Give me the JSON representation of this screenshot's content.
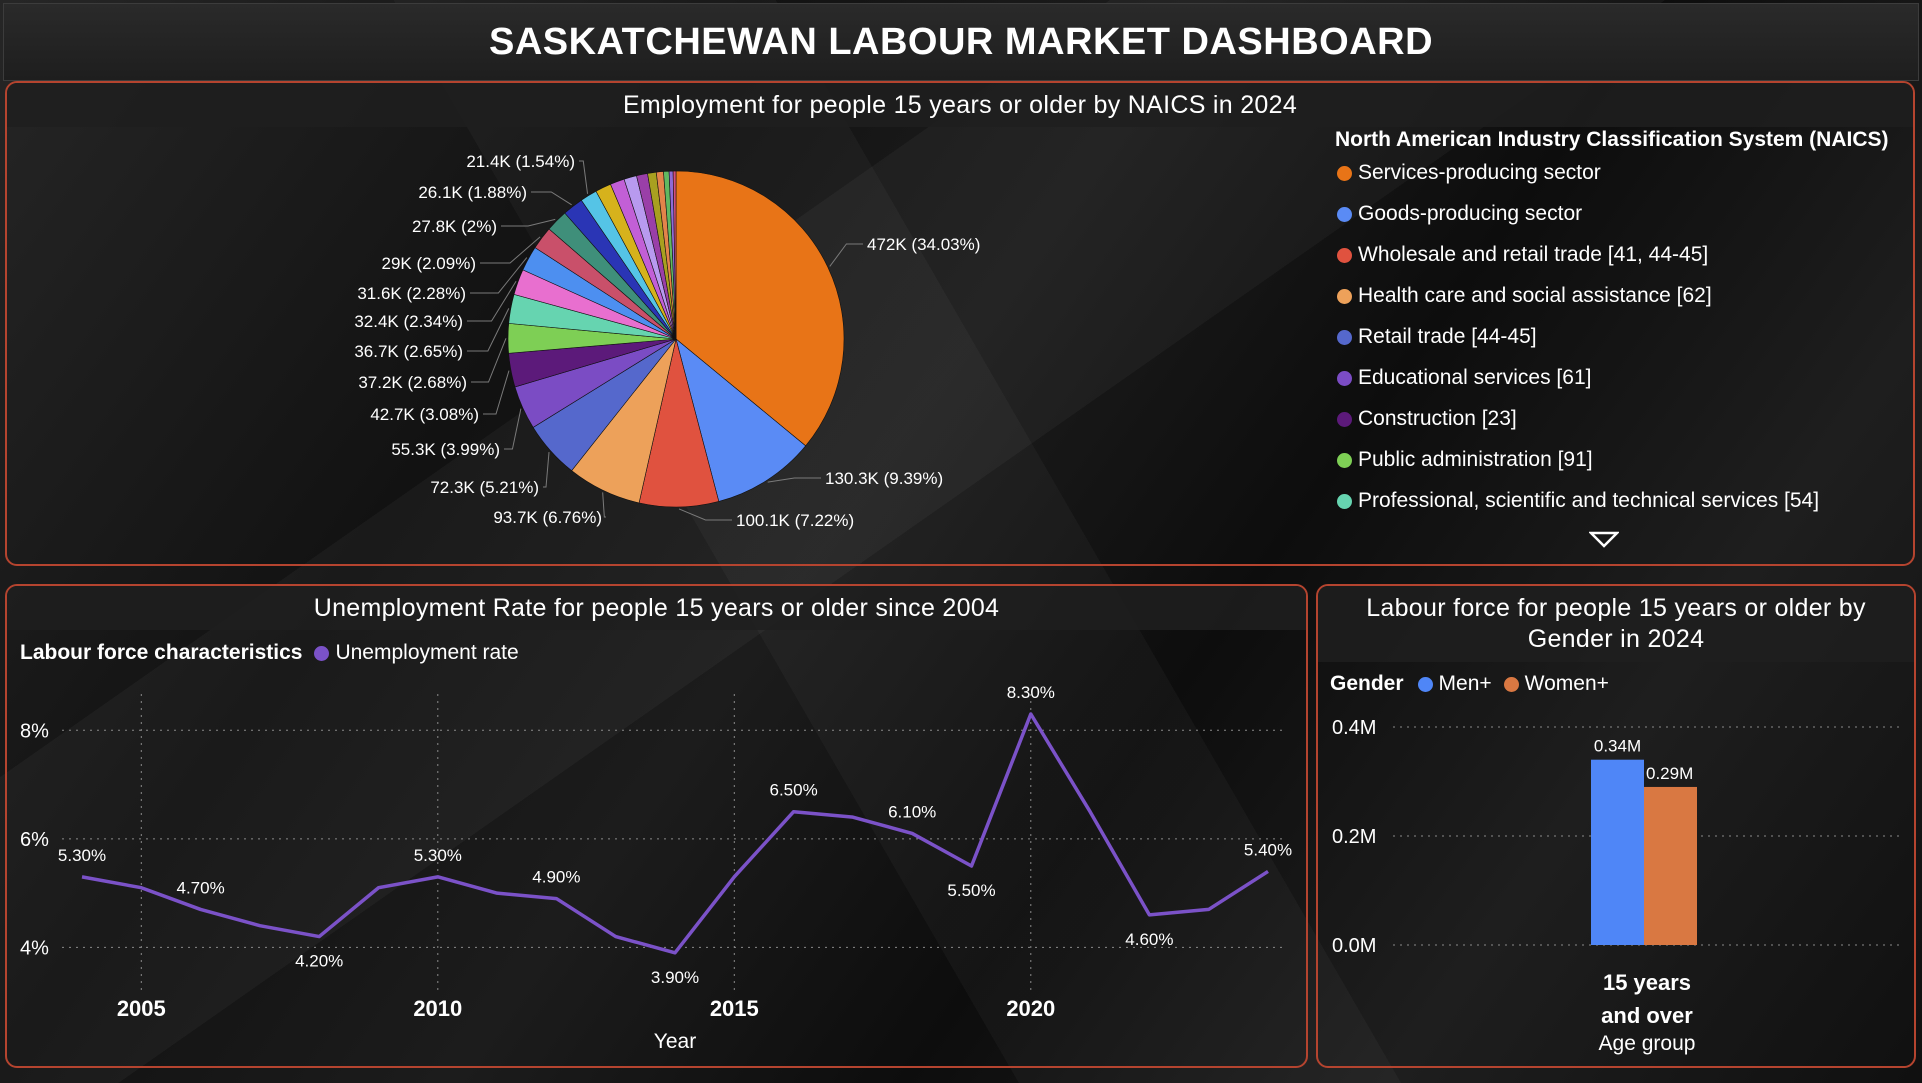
{
  "dashboard_title": "SASKATCHEWAN LABOUR MARKET DASHBOARD",
  "colors": {
    "panel_border": "#b5442f",
    "unemployment_line": "#7b52c8",
    "men": "#4f86f7",
    "women": "#d97842"
  },
  "chart_data": [
    {
      "type": "pie",
      "title": "Employment for people 15 years or older by NAICS in 2024",
      "legend_title": "North American Industry Classification System (NAICS)",
      "legend_position": "right",
      "legend_items": [
        {
          "label": "Services-producing sector",
          "color": "#e87417"
        },
        {
          "label": "Goods-producing sector",
          "color": "#5a8bf5"
        },
        {
          "label": "Wholesale and retail trade [41, 44-45]",
          "color": "#e0523f"
        },
        {
          "label": "Health care and social assistance [62]",
          "color": "#eda15a"
        },
        {
          "label": "Retail trade [44-45]",
          "color": "#5568cc"
        },
        {
          "label": "Educational services [61]",
          "color": "#7b4cc4"
        },
        {
          "label": "Construction [23]",
          "color": "#5c1a7a"
        },
        {
          "label": "Public administration [91]",
          "color": "#7ecf55"
        },
        {
          "label": "Professional, scientific and technical services [54]",
          "color": "#66d4b0"
        }
      ],
      "slices": [
        {
          "value": 472.0,
          "label": "472K (34.03%)",
          "color": "#e87417"
        },
        {
          "value": 130.3,
          "label": "130.3K (9.39%)",
          "color": "#5a8bf5"
        },
        {
          "value": 100.1,
          "label": "100.1K (7.22%)",
          "color": "#e0523f"
        },
        {
          "value": 93.7,
          "label": "93.7K (6.76%)",
          "color": "#eda15a"
        },
        {
          "value": 72.3,
          "label": "72.3K (5.21%)",
          "color": "#5568cc"
        },
        {
          "value": 55.3,
          "label": "55.3K (3.99%)",
          "color": "#7b4cc4"
        },
        {
          "value": 42.7,
          "label": "42.7K (3.08%)",
          "color": "#5c1a7a"
        },
        {
          "value": 37.2,
          "label": "37.2K (2.68%)",
          "color": "#7ecf55"
        },
        {
          "value": 36.7,
          "label": "36.7K (2.65%)",
          "color": "#66d4b0"
        },
        {
          "value": 32.4,
          "label": "32.4K (2.34%)",
          "color": "#e86fcf"
        },
        {
          "value": 31.6,
          "label": "31.6K (2.28%)",
          "color": "#4d8ff0"
        },
        {
          "value": 29.0,
          "label": "29K (2.09%)",
          "color": "#c9506a"
        },
        {
          "value": 27.8,
          "label": "27.8K (2%)",
          "color": "#3f8f7a"
        },
        {
          "value": 26.1,
          "label": "26.1K (1.88%)",
          "color": "#2a35b5"
        },
        {
          "value": 21.4,
          "label": "21.4K (1.54%)",
          "color": "#55c4e6"
        },
        {
          "value": 20.0,
          "label": "",
          "color": "#d6b21c"
        },
        {
          "value": 18.0,
          "label": "",
          "color": "#c25fd6"
        },
        {
          "value": 16.0,
          "label": "",
          "color": "#b89aef"
        },
        {
          "value": 14.0,
          "label": "",
          "color": "#9a3fa8"
        },
        {
          "value": 11.0,
          "label": "",
          "color": "#a8a020"
        },
        {
          "value": 9.0,
          "label": "",
          "color": "#e3844a"
        },
        {
          "value": 7.0,
          "label": "",
          "color": "#61b861"
        },
        {
          "value": 5.0,
          "label": "",
          "color": "#8f6bd6"
        },
        {
          "value": 3.6,
          "label": "",
          "color": "#d64e7a"
        }
      ]
    },
    {
      "type": "line",
      "title": "Unemployment Rate for people 15 years or older since 2004",
      "legend_title": "Labour force characteristics",
      "legend_position": "top-left",
      "series": [
        {
          "name": "Unemployment rate",
          "x": [
            2004,
            2005,
            2006,
            2007,
            2008,
            2009,
            2010,
            2011,
            2012,
            2013,
            2014,
            2015,
            2016,
            2017,
            2018,
            2019,
            2020,
            2021,
            2022,
            2023,
            2024
          ],
          "values": [
            5.3,
            5.1,
            4.7,
            4.4,
            4.2,
            5.1,
            5.3,
            5.0,
            4.9,
            4.2,
            3.9,
            5.3,
            6.5,
            6.4,
            6.1,
            5.5,
            8.3,
            6.5,
            4.6,
            4.7,
            5.4
          ]
        }
      ],
      "data_labels": [
        {
          "x": 2004,
          "text": "5.30%",
          "pos": "above"
        },
        {
          "x": 2006,
          "text": "4.70%",
          "pos": "above"
        },
        {
          "x": 2008,
          "text": "4.20%",
          "pos": "below"
        },
        {
          "x": 2010,
          "text": "5.30%",
          "pos": "above"
        },
        {
          "x": 2012,
          "text": "4.90%",
          "pos": "above"
        },
        {
          "x": 2014,
          "text": "3.90%",
          "pos": "below"
        },
        {
          "x": 2016,
          "text": "6.50%",
          "pos": "above"
        },
        {
          "x": 2018,
          "text": "6.10%",
          "pos": "above"
        },
        {
          "x": 2019,
          "text": "5.50%",
          "pos": "below"
        },
        {
          "x": 2020,
          "text": "8.30%",
          "pos": "above"
        },
        {
          "x": 2022,
          "text": "4.60%",
          "pos": "below"
        },
        {
          "x": 2024,
          "text": "5.40%",
          "pos": "above"
        }
      ],
      "xticks": [
        2005,
        2010,
        2015,
        2020
      ],
      "yticks": [
        {
          "v": 4,
          "label": "4%"
        },
        {
          "v": 6,
          "label": "6%"
        },
        {
          "v": 8,
          "label": "8%"
        }
      ],
      "xlabel": "Year",
      "ylabel": "",
      "ylim": [
        3.4,
        9.0
      ],
      "grid": true
    },
    {
      "type": "bar",
      "title": "Labour force for people 15 years or older by Gender in 2024",
      "legend_title": "Gender",
      "legend_position": "top-left",
      "categories": [
        "15 years and over"
      ],
      "series": [
        {
          "name": "Men+",
          "values": [
            0.34
          ],
          "label": "0.34M"
        },
        {
          "name": "Women+",
          "values": [
            0.29
          ],
          "label": "0.29M"
        }
      ],
      "yticks": [
        {
          "v": 0,
          "label": "0.0M"
        },
        {
          "v": 0.2,
          "label": "0.2M"
        },
        {
          "v": 0.4,
          "label": "0.4M"
        }
      ],
      "category_label_lines": [
        "15 years",
        "and over"
      ],
      "xlabel": "Age group",
      "ylim": [
        0,
        0.4
      ],
      "grid": true
    }
  ]
}
